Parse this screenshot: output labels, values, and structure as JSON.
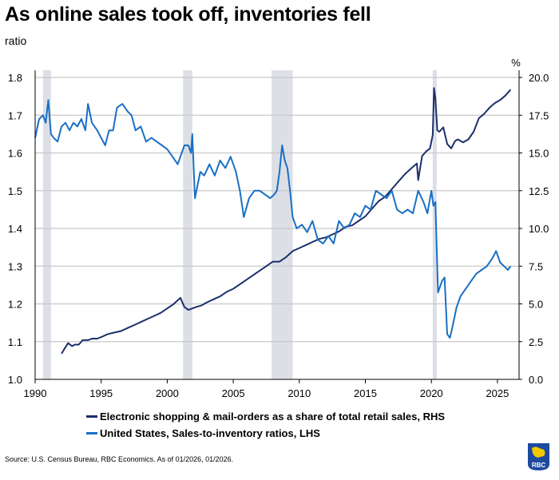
{
  "header": {
    "title": "As online sales took off, inventories fell",
    "subtitle": "ratio"
  },
  "footer": {
    "source": "Source: U.S. Census Bureau, RBC Economics. As of 01/2026, 01/2026.",
    "logo_text": "RBC"
  },
  "chart_data": {
    "type": "line",
    "title": "As online sales took off, inventories fell",
    "ylabel_left": "ratio",
    "ylabel_right": "%",
    "xlim": [
      1990,
      2026.3
    ],
    "ylim_left": [
      1.0,
      1.8
    ],
    "ylim_right": [
      0.0,
      20.0
    ],
    "x_ticks": [
      "1990",
      "1995",
      "2000",
      "2005",
      "2010",
      "2015",
      "2020",
      "2025"
    ],
    "y_ticks_left": [
      "1.0",
      "1.1",
      "1.2",
      "1.3",
      "1.4",
      "1.5",
      "1.6",
      "1.7",
      "1.8"
    ],
    "y_ticks_right": [
      "0.0",
      "2.5",
      "5.0",
      "7.5",
      "10.0",
      "12.5",
      "15.0",
      "17.5",
      "20.0"
    ],
    "grid": true,
    "legend_position": "bottom",
    "recessions": [
      [
        1990.6,
        1991.2
      ],
      [
        2001.2,
        2001.9
      ],
      [
        2007.9,
        2009.5
      ],
      [
        2020.1,
        2020.4
      ]
    ],
    "colors": {
      "ecommerce": "#1b2f6b",
      "sales_inventory": "#1a6fc4",
      "recession": "#dcdfe6",
      "grid": "#c8c8c8"
    },
    "series": [
      {
        "name": "Electronic shopping & mail-orders as a share of total retail sales, RHS",
        "axis": "right",
        "color": "#1b2f6b",
        "x": [
          1992.0,
          1992.2,
          1992.5,
          1992.8,
          1993.0,
          1993.3,
          1993.6,
          1994.0,
          1994.3,
          1994.7,
          1995.0,
          1995.5,
          1996.0,
          1996.5,
          1997.0,
          1997.5,
          1998.0,
          1998.5,
          1999.0,
          1999.5,
          2000.0,
          2000.5,
          2001.0,
          2001.3,
          2001.6,
          2001.9,
          2002.2,
          2002.6,
          2003.0,
          2003.5,
          2004.0,
          2004.5,
          2005.0,
          2005.5,
          2006.0,
          2006.5,
          2007.0,
          2007.5,
          2008.0,
          2008.5,
          2009.0,
          2009.5,
          2010.0,
          2010.5,
          2011.0,
          2011.5,
          2012.0,
          2012.5,
          2013.0,
          2013.5,
          2014.0,
          2014.5,
          2015.0,
          2015.5,
          2016.0,
          2016.5,
          2017.0,
          2017.5,
          2018.0,
          2018.5,
          2018.9,
          2019.0,
          2019.3,
          2019.6,
          2019.9,
          2020.1,
          2020.2,
          2020.3,
          2020.45,
          2020.6,
          2020.9,
          2021.2,
          2021.5,
          2021.8,
          2022.0,
          2022.4,
          2022.8,
          2023.2,
          2023.6,
          2024.0,
          2024.4,
          2024.8,
          2025.2,
          2025.6,
          2026.0
        ],
        "values": [
          1.7,
          2.0,
          2.4,
          2.2,
          2.3,
          2.3,
          2.6,
          2.6,
          2.7,
          2.7,
          2.8,
          3.0,
          3.1,
          3.2,
          3.4,
          3.6,
          3.8,
          4.0,
          4.2,
          4.4,
          4.7,
          5.0,
          5.4,
          4.8,
          4.6,
          4.7,
          4.8,
          4.9,
          5.1,
          5.3,
          5.5,
          5.8,
          6.0,
          6.3,
          6.6,
          6.9,
          7.2,
          7.5,
          7.8,
          7.8,
          8.1,
          8.5,
          8.7,
          8.9,
          9.1,
          9.3,
          9.4,
          9.6,
          9.8,
          10.1,
          10.2,
          10.5,
          10.8,
          11.3,
          11.8,
          12.1,
          12.6,
          13.1,
          13.6,
          14.0,
          14.3,
          13.2,
          14.8,
          15.1,
          15.3,
          16.2,
          19.3,
          18.6,
          16.5,
          16.4,
          16.7,
          15.6,
          15.3,
          15.8,
          15.9,
          15.7,
          15.9,
          16.4,
          17.3,
          17.6,
          18.0,
          18.3,
          18.5,
          18.8,
          19.2
        ]
      },
      {
        "name": "United States, Sales-to-inventory ratios, LHS",
        "axis": "left",
        "color": "#1a6fc4",
        "x": [
          1990.0,
          1990.3,
          1990.6,
          1990.8,
          1991.0,
          1991.2,
          1991.4,
          1991.7,
          1992.0,
          1992.3,
          1992.6,
          1992.9,
          1993.2,
          1993.5,
          1993.8,
          1994.0,
          1994.3,
          1994.7,
          1995.0,
          1995.3,
          1995.6,
          1995.9,
          1996.2,
          1996.6,
          1997.0,
          1997.3,
          1997.6,
          1998.0,
          1998.4,
          1998.8,
          1999.2,
          1999.6,
          2000.0,
          2000.4,
          2000.8,
          2001.0,
          2001.3,
          2001.6,
          2001.8,
          2001.9,
          2002.1,
          2002.5,
          2002.8,
          2003.2,
          2003.6,
          2004.0,
          2004.4,
          2004.8,
          2005.2,
          2005.5,
          2005.8,
          2006.2,
          2006.6,
          2007.0,
          2007.4,
          2007.8,
          2008.1,
          2008.3,
          2008.5,
          2008.7,
          2008.9,
          2009.1,
          2009.3,
          2009.5,
          2009.8,
          2010.2,
          2010.6,
          2011.0,
          2011.4,
          2011.8,
          2012.2,
          2012.6,
          2013.0,
          2013.4,
          2013.8,
          2014.2,
          2014.6,
          2015.0,
          2015.4,
          2015.8,
          2016.2,
          2016.6,
          2017.0,
          2017.4,
          2017.8,
          2018.2,
          2018.6,
          2019.0,
          2019.4,
          2019.7,
          2020.0,
          2020.15,
          2020.3,
          2020.5,
          2020.8,
          2021.0,
          2021.2,
          2021.4,
          2021.6,
          2021.9,
          2022.2,
          2022.6,
          2023.0,
          2023.4,
          2023.8,
          2024.2,
          2024.6,
          2024.9,
          2025.2,
          2025.5,
          2025.8,
          2026.0
        ],
        "values": [
          1.64,
          1.69,
          1.7,
          1.68,
          1.74,
          1.65,
          1.64,
          1.63,
          1.67,
          1.68,
          1.66,
          1.68,
          1.67,
          1.69,
          1.66,
          1.73,
          1.68,
          1.66,
          1.64,
          1.62,
          1.66,
          1.66,
          1.72,
          1.73,
          1.71,
          1.7,
          1.66,
          1.67,
          1.63,
          1.64,
          1.63,
          1.62,
          1.61,
          1.59,
          1.57,
          1.59,
          1.62,
          1.62,
          1.6,
          1.65,
          1.48,
          1.55,
          1.54,
          1.57,
          1.54,
          1.58,
          1.56,
          1.59,
          1.55,
          1.5,
          1.43,
          1.48,
          1.5,
          1.5,
          1.49,
          1.48,
          1.49,
          1.5,
          1.55,
          1.62,
          1.58,
          1.56,
          1.5,
          1.43,
          1.4,
          1.41,
          1.39,
          1.42,
          1.37,
          1.36,
          1.38,
          1.36,
          1.42,
          1.4,
          1.41,
          1.44,
          1.43,
          1.46,
          1.45,
          1.5,
          1.49,
          1.48,
          1.5,
          1.45,
          1.44,
          1.45,
          1.44,
          1.5,
          1.47,
          1.44,
          1.5,
          1.46,
          1.47,
          1.23,
          1.26,
          1.27,
          1.12,
          1.11,
          1.14,
          1.19,
          1.22,
          1.24,
          1.26,
          1.28,
          1.29,
          1.3,
          1.32,
          1.34,
          1.31,
          1.3,
          1.29,
          1.3
        ]
      }
    ]
  }
}
